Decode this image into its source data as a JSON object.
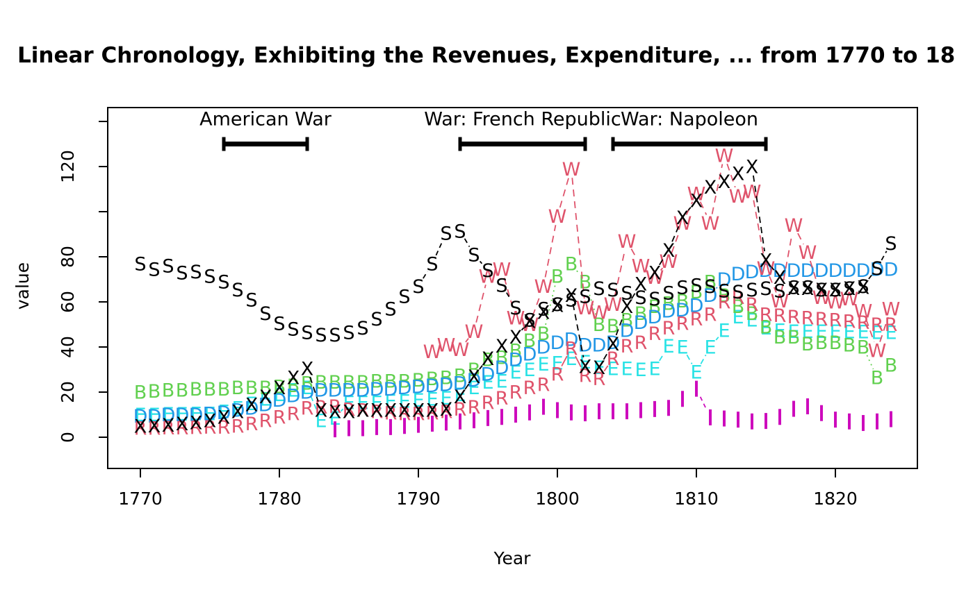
{
  "chart_data": {
    "type": "line",
    "title": "Linear Chronology, Exhibiting the Revenues, Expenditure, ... from 1770 to 18",
    "xlabel": "Year",
    "ylabel": "value",
    "x_ticks": [
      1770,
      1780,
      1790,
      1800,
      1810,
      1820
    ],
    "y_ticks_all": [
      0,
      20,
      40,
      60,
      80,
      100,
      120,
      140
    ],
    "y_ticks_labeled": [
      0,
      20,
      40,
      60,
      80,
      120
    ],
    "xlim": [
      1767.8,
      1826.2
    ],
    "ylim": [
      -14,
      146
    ],
    "grid": false,
    "legend": "none",
    "wars": [
      {
        "label": "American War",
        "start": 1776,
        "end": 1782
      },
      {
        "label": "War: French Republic",
        "start": 1793,
        "end": 1802
      },
      {
        "label": "War: Napoleon",
        "start": 1804,
        "end": 1815
      }
    ],
    "war_bar_value": 130,
    "series": [
      {
        "pch": "E",
        "color": "#28E2E5",
        "dash": "8 5",
        "start_year": 1770,
        "values": [
          10,
          10,
          10.3,
          10.3,
          10.5,
          10.5,
          11.5,
          13,
          15,
          17,
          19,
          21,
          22,
          7.5,
          8.5,
          15.5,
          15.5,
          15.5,
          16,
          16,
          16.5,
          17,
          17.5,
          19,
          22,
          24.5,
          25,
          29,
          30,
          32.5,
          33,
          35,
          33.5,
          31,
          30.5,
          30.5,
          30,
          30.5,
          40.5,
          40,
          29,
          40,
          47.5,
          53.5,
          52,
          48.5,
          47.5,
          47,
          47,
          47,
          47,
          46.8,
          46.8,
          46.5,
          46.5
        ]
      },
      {
        "pch": "B",
        "color": "#61D04F",
        "dash": "2 5",
        "start_year": 1770,
        "values": [
          20,
          20.5,
          21,
          21,
          21.5,
          21.5,
          21.5,
          22,
          22,
          22,
          22.5,
          23,
          24,
          24.5,
          24.5,
          24.5,
          24.5,
          25,
          25,
          25,
          25.5,
          26,
          26.5,
          27.5,
          30,
          34.5,
          35.5,
          38.5,
          43,
          46,
          71.5,
          77,
          69,
          50,
          49.5,
          52,
          55,
          58,
          59.5,
          60.5,
          64.5,
          69,
          63,
          58,
          55,
          49,
          44.5,
          44.5,
          41.5,
          42,
          42,
          41,
          40,
          26.5,
          32
        ]
      },
      {
        "pch": "D",
        "color": "#2297E6",
        "dash": "2 5",
        "start_year": 1770,
        "values": [
          9.5,
          9.5,
          10,
          10,
          10,
          10.5,
          11,
          12,
          13,
          14.5,
          16.5,
          18.5,
          20,
          21,
          21,
          21,
          21,
          21.5,
          21.5,
          22,
          22.5,
          23,
          23.5,
          24,
          25.5,
          28,
          31,
          34.5,
          37,
          40,
          42,
          43.5,
          41,
          41,
          42,
          47.5,
          51,
          53.5,
          56,
          56.5,
          58.5,
          63,
          70,
          72.5,
          73.5,
          74,
          74,
          74,
          74,
          74,
          74,
          74,
          74,
          74.5,
          74.5
        ]
      },
      {
        "pch": "R",
        "color": "#DF536B",
        "dash": "",
        "start_year": 1770,
        "values": [
          4,
          4,
          4.2,
          4.2,
          4.3,
          4.5,
          4.5,
          5,
          6,
          7.5,
          9,
          10.5,
          13,
          13.5,
          13.8,
          12.3,
          12,
          11.4,
          10.8,
          10.5,
          10.5,
          10.8,
          11.4,
          12.5,
          13.5,
          15.5,
          17.5,
          20,
          22,
          23.5,
          28,
          39.5,
          27.5,
          26,
          35,
          40.5,
          42,
          46,
          48.5,
          50.5,
          52.5,
          54.5,
          60,
          62,
          59,
          54.5,
          54,
          53.5,
          53,
          52.5,
          52,
          51.5,
          51,
          50,
          50
        ]
      },
      {
        "pch": "W",
        "color": "#DF536B",
        "dash": "10 7",
        "start_year": 1791,
        "values": [
          38,
          41,
          39,
          47,
          71.5,
          74.5,
          53,
          50,
          67,
          98,
          119,
          57.5,
          55.5,
          59,
          87,
          76,
          71,
          78,
          95,
          108,
          95,
          125,
          107,
          109,
          75,
          60.5,
          94,
          82,
          62,
          60,
          61.5,
          56,
          38.5,
          57
        ]
      },
      {
        "pch": "S",
        "color": "#000000",
        "dash": "7 5",
        "start_year": 1770,
        "values": [
          77,
          74.5,
          76,
          73,
          73.5,
          71.5,
          69,
          65.5,
          61,
          55,
          50.5,
          48,
          46.5,
          45.5,
          45.5,
          46.5,
          48.5,
          52.5,
          57,
          62.5,
          67,
          77,
          90.5,
          91.5,
          81,
          74,
          67.5,
          57.5,
          52,
          57,
          59,
          61,
          62.5,
          66,
          65.5,
          64,
          62,
          61.5,
          64,
          66.5,
          67.5,
          67,
          65,
          64.5,
          65.5,
          66,
          65,
          66.5,
          66.5,
          65.5,
          65.5,
          66,
          67,
          75,
          86
        ]
      },
      {
        "pch": "X",
        "color": "#000000",
        "dash": "9 6",
        "start_year": 1770,
        "values": [
          5,
          5.2,
          5.5,
          6,
          6.5,
          7.5,
          9,
          11.5,
          14.5,
          18,
          22,
          26.5,
          30.5,
          12,
          11.5,
          11.5,
          12,
          12,
          12,
          12,
          12,
          12,
          12.5,
          18,
          27,
          35,
          40.5,
          44.5,
          51.5,
          55.5,
          58.5,
          63,
          31.5,
          31,
          41.5,
          58,
          68,
          73,
          83,
          97.5,
          105,
          111,
          113.5,
          117,
          120,
          78.5,
          71,
          66,
          66,
          65.5,
          65.5,
          66,
          66.5
        ]
      },
      {
        "pch": "|",
        "color": "#CD0BBC",
        "dash": "6 5",
        "start_year": 1784,
        "values": [
          3.5,
          4,
          4,
          4.5,
          4.5,
          5,
          5.5,
          6,
          6.5,
          7,
          7.5,
          8.5,
          9,
          10,
          11,
          13.5,
          12,
          11,
          10.6,
          11.5,
          11.5,
          11.5,
          12,
          12.5,
          13,
          17,
          21.5,
          8.8,
          8.3,
          7.8,
          7,
          7.2,
          9,
          12.6,
          13.7,
          10.7,
          7.8,
          7,
          6.3,
          7,
          8
        ]
      }
    ]
  }
}
